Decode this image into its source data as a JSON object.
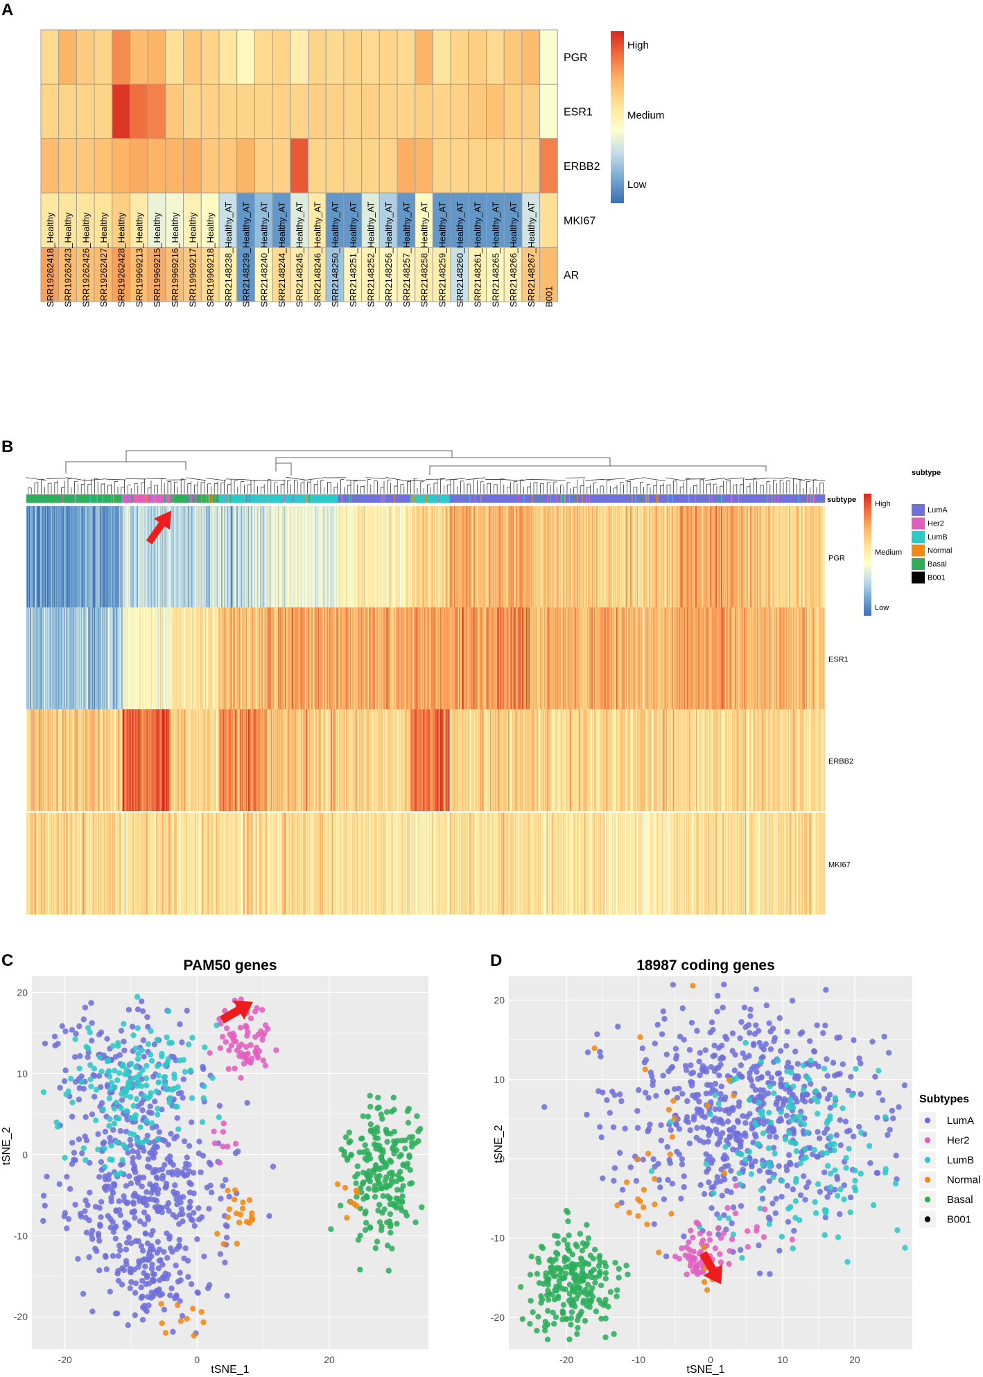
{
  "colors": {
    "scale": [
      "#3a6fb4",
      "#74a8d0",
      "#c2dcea",
      "#ffffcc",
      "#fee39a",
      "#fdb768",
      "#f0703f",
      "#d6271f"
    ],
    "subtypes": {
      "LumA": "#6f70dc",
      "Her2": "#e15ebf",
      "LumB": "#2ec8c8",
      "Normal": "#f18a15",
      "Basal": "#2eae5b",
      "B001": "#000000"
    },
    "arrow": "#ee1c1c",
    "plot_bg": "#ebebeb"
  },
  "panel_labels": {
    "a": "A",
    "b": "B",
    "c": "C",
    "d": "D"
  },
  "chart_data": [
    {
      "id": "A",
      "type": "heatmap",
      "title": "",
      "genes": [
        "PGR",
        "ESR1",
        "ERBB2",
        "MKI67",
        "AR"
      ],
      "samples": [
        "SRR19262418_Healthy",
        "SRR19262423_Healthy",
        "SRR19262426_Healthy",
        "SRR19262427_Healthy",
        "SRR19262428_Healthy",
        "SRR19969213_Healthy",
        "SRR19969215_Healthy",
        "SRR19969216_Healthy",
        "SRR19969217_Healthy",
        "SRR19969218_Healthy",
        "SRR2148238_Healthy_AT",
        "SRR2148239_Healthy_AT",
        "SRR2148240_Healthy_AT",
        "SRR2148244_Healthy_AT",
        "SRR2148245_Healthy_AT",
        "SRR2148246_Healthy_AT",
        "SRR2148250_Healthy_AT",
        "SRR2148251_Healthy_AT",
        "SRR2148252_Healthy_AT",
        "SRR2148256_Healthy_AT",
        "SRR2148257_Healthy_AT",
        "SRR2148258_Healthy_AT",
        "SRR2148259_Healthy_AT",
        "SRR2148260_Healthy_AT",
        "SRR2148261_Healthy_AT",
        "SRR2148265_Healthy_AT",
        "SRR2148266_Healthy_AT",
        "SRR2148267_Healthy_AT",
        "B001"
      ],
      "values": [
        [
          0.6,
          0.72,
          0.65,
          0.62,
          0.8,
          0.7,
          0.72,
          0.58,
          0.66,
          0.62,
          0.55,
          0.47,
          0.6,
          0.62,
          0.52,
          0.62,
          0.6,
          0.62,
          0.6,
          0.62,
          0.6,
          0.72,
          0.57,
          0.62,
          0.64,
          0.6,
          0.66,
          0.7,
          0.42
        ],
        [
          0.62,
          0.62,
          0.62,
          0.62,
          0.97,
          0.86,
          0.82,
          0.66,
          0.62,
          0.63,
          0.62,
          0.62,
          0.62,
          0.63,
          0.62,
          0.64,
          0.63,
          0.62,
          0.63,
          0.62,
          0.62,
          0.64,
          0.62,
          0.63,
          0.66,
          0.68,
          0.64,
          0.64,
          0.42
        ],
        [
          0.7,
          0.66,
          0.66,
          0.68,
          0.72,
          0.74,
          0.72,
          0.72,
          0.73,
          0.66,
          0.66,
          0.72,
          0.63,
          0.63,
          0.9,
          0.62,
          0.62,
          0.62,
          0.62,
          0.62,
          0.73,
          0.72,
          0.62,
          0.62,
          0.62,
          0.62,
          0.62,
          0.62,
          0.82
        ],
        [
          0.55,
          0.56,
          0.56,
          0.57,
          0.64,
          0.53,
          0.38,
          0.4,
          0.5,
          0.45,
          0.3,
          0.1,
          0.2,
          0.1,
          0.35,
          0.53,
          0.1,
          0.1,
          0.35,
          0.25,
          0.1,
          0.45,
          0.1,
          0.1,
          0.1,
          0.1,
          0.1,
          0.32,
          0.58
        ],
        [
          0.76,
          0.7,
          0.68,
          0.7,
          0.76,
          0.69,
          0.74,
          0.69,
          0.66,
          0.6,
          0.5,
          0.1,
          0.47,
          0.6,
          0.53,
          0.55,
          0.22,
          0.48,
          0.5,
          0.47,
          0.5,
          0.52,
          0.52,
          0.3,
          0.5,
          0.46,
          0.5,
          0.66,
          0.7
        ]
      ],
      "legend": {
        "high": "High",
        "medium": "Medium",
        "low": "Low"
      }
    },
    {
      "id": "B",
      "type": "heatmap",
      "title": "",
      "genes": [
        "PGR",
        "ESR1",
        "ERBB2",
        "MKI67"
      ],
      "annotation_label": "subtype",
      "samples_count": 930,
      "segments": [
        {
          "width": 0.12,
          "subtype": "Basal",
          "PGR": 0.12,
          "ESR1": 0.22,
          "ERBB2": 0.65,
          "MKI67": 0.62
        },
        {
          "width": 0.06,
          "subtype": "Her2",
          "PGR": 0.3,
          "ESR1": 0.45,
          "ERBB2": 0.88,
          "MKI67": 0.6
        },
        {
          "width": 0.06,
          "subtype": "Basal",
          "PGR": 0.28,
          "ESR1": 0.55,
          "ERBB2": 0.62,
          "MKI67": 0.6
        },
        {
          "width": 0.06,
          "subtype": "LumB",
          "PGR": 0.3,
          "ESR1": 0.68,
          "ERBB2": 0.8,
          "MKI67": 0.6
        },
        {
          "width": 0.09,
          "subtype": "LumB",
          "PGR": 0.38,
          "ESR1": 0.74,
          "ERBB2": 0.65,
          "MKI67": 0.58
        },
        {
          "width": 0.09,
          "subtype": "LumA",
          "PGR": 0.5,
          "ESR1": 0.72,
          "ERBB2": 0.62,
          "MKI67": 0.56
        },
        {
          "width": 0.05,
          "subtype": "LumB",
          "PGR": 0.6,
          "ESR1": 0.74,
          "ERBB2": 0.86,
          "MKI67": 0.5
        },
        {
          "width": 0.1,
          "subtype": "LumA",
          "PGR": 0.72,
          "ESR1": 0.78,
          "ERBB2": 0.62,
          "MKI67": 0.58
        },
        {
          "width": 0.1,
          "subtype": "LumA",
          "PGR": 0.66,
          "ESR1": 0.72,
          "ERBB2": 0.6,
          "MKI67": 0.56
        },
        {
          "width": 0.08,
          "subtype": "LumA",
          "PGR": 0.62,
          "ESR1": 0.7,
          "ERBB2": 0.62,
          "MKI67": 0.52
        },
        {
          "width": 0.1,
          "subtype": "LumA",
          "PGR": 0.72,
          "ESR1": 0.74,
          "ERBB2": 0.62,
          "MKI67": 0.57
        },
        {
          "width": 0.09,
          "subtype": "LumA",
          "PGR": 0.62,
          "ESR1": 0.7,
          "ERBB2": 0.6,
          "MKI67": 0.58
        }
      ],
      "legend": {
        "high": "High",
        "medium": "Medium",
        "low": "Low",
        "title": "subtype",
        "items": [
          "LumA",
          "Her2",
          "LumB",
          "Normal",
          "Basal",
          "B001"
        ]
      }
    },
    {
      "id": "C",
      "type": "scatter",
      "title": "PAM50  genes",
      "xlabel": "tSNE_1",
      "ylabel": "tSNE_2",
      "xlim": [
        -25,
        35
      ],
      "ylim": [
        -24,
        22
      ],
      "xticks": [
        -20,
        0,
        20
      ],
      "yticks": [
        20,
        10,
        0,
        -10,
        -20
      ],
      "grid": true,
      "clusters": [
        {
          "subtype": "LumA",
          "cx": -8,
          "cy": -5,
          "sx": 6,
          "sy": 7,
          "n": 420
        },
        {
          "subtype": "LumA",
          "cx": -12,
          "cy": 10,
          "sx": 6,
          "sy": 5,
          "n": 120
        },
        {
          "subtype": "LumA",
          "cx": -7,
          "cy": -16,
          "sx": 2.2,
          "sy": 3,
          "n": 60
        },
        {
          "subtype": "LumB",
          "cx": -9,
          "cy": 8,
          "sx": 5,
          "sy": 4,
          "n": 170
        },
        {
          "subtype": "Her2",
          "cx": 7,
          "cy": 14,
          "sx": 2.2,
          "sy": 2.4,
          "n": 70
        },
        {
          "subtype": "Her2",
          "cx": 4,
          "cy": 1,
          "sx": 1.2,
          "sy": 2.5,
          "n": 8
        },
        {
          "subtype": "Basal",
          "cx": 28,
          "cy": -2,
          "sx": 3,
          "sy": 4,
          "n": 220
        },
        {
          "subtype": "Normal",
          "cx": 6,
          "cy": -7,
          "sx": 1.6,
          "sy": 2.5,
          "n": 16
        },
        {
          "subtype": "Normal",
          "cx": -2,
          "cy": -21,
          "sx": 1.5,
          "sy": 1.2,
          "n": 12
        },
        {
          "subtype": "Normal",
          "cx": 23,
          "cy": -5,
          "sx": 1,
          "sy": 1.2,
          "n": 8
        },
        {
          "subtype": "Normal",
          "cx": 9,
          "cy": -8.5,
          "sx": 0.8,
          "sy": 0.8,
          "n": 4
        }
      ],
      "highlight": {
        "subtype": "B001",
        "x": 7,
        "y": 18.5
      }
    },
    {
      "id": "D",
      "type": "scatter",
      "title": "18987 coding genes",
      "xlabel": "tSNE_1",
      "ylabel": "tSNE_2",
      "xlim": [
        -28,
        28
      ],
      "ylim": [
        -24,
        23
      ],
      "xticks": [
        -20,
        -10,
        0,
        10,
        20
      ],
      "yticks": [
        20,
        10,
        0,
        -10,
        -20
      ],
      "grid": true,
      "legend_title": "Subtypes",
      "legend_items": [
        "LumA",
        "Her2",
        "LumB",
        "Normal",
        "Basal",
        "B001"
      ],
      "clusters": [
        {
          "subtype": "LumA",
          "cx": 5,
          "cy": 6,
          "sx": 9,
          "sy": 7,
          "n": 620
        },
        {
          "subtype": "LumB",
          "cx": 12,
          "cy": 2,
          "sx": 7,
          "sy": 6,
          "n": 150
        },
        {
          "subtype": "Her2",
          "cx": -1.5,
          "cy": -12.5,
          "sx": 1.5,
          "sy": 1.6,
          "n": 50
        },
        {
          "subtype": "Her2",
          "cx": 3,
          "cy": -8.5,
          "sx": 4,
          "sy": 2.5,
          "n": 22
        },
        {
          "subtype": "Basal",
          "cx": -19,
          "cy": -16,
          "sx": 3,
          "sy": 3.4,
          "n": 230
        },
        {
          "subtype": "Normal",
          "cx": -10,
          "cy": -6,
          "sx": 2,
          "sy": 1.5,
          "n": 10
        },
        {
          "subtype": "Normal",
          "cx": -5,
          "cy": 5,
          "sx": 4,
          "sy": 7,
          "n": 18
        },
        {
          "subtype": "Normal",
          "cx": 0,
          "cy": -14,
          "sx": 1.2,
          "sy": 1.2,
          "n": 6
        }
      ],
      "highlight": {
        "subtype": "B001",
        "x": 0.5,
        "y": -14.6
      }
    }
  ]
}
